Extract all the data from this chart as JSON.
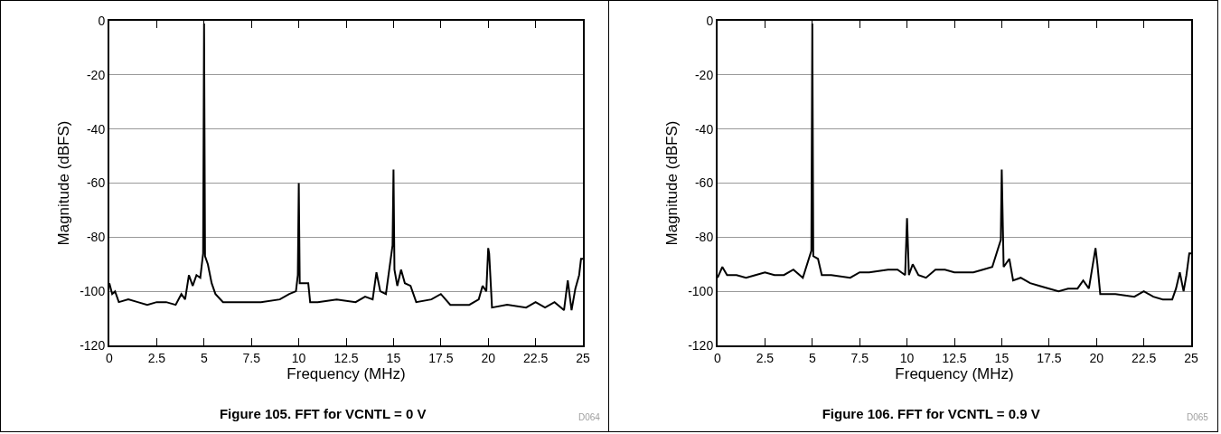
{
  "chart_data": [
    {
      "type": "line",
      "title": "Figure 105. FFT for VCNTL = 0 V",
      "xlabel": "Frequency (MHz)",
      "ylabel": "Magnitude (dBFS)",
      "annotations": [
        "D064"
      ],
      "grid": "y",
      "x": [
        0,
        0.15,
        0.3,
        0.5,
        1,
        1.5,
        2,
        2.5,
        3,
        3.5,
        3.8,
        4,
        4.2,
        4.4,
        4.6,
        4.8,
        4.95,
        5,
        5.05,
        5.2,
        5.4,
        5.6,
        6,
        7,
        8,
        9,
        9.5,
        9.85,
        9.95,
        10,
        10.05,
        10.2,
        10.5,
        10.6,
        11,
        12,
        13,
        13.5,
        13.9,
        14.1,
        14.3,
        14.6,
        14.95,
        15,
        15.05,
        15.2,
        15.4,
        15.6,
        15.9,
        16.2,
        17,
        17.5,
        18,
        19,
        19.5,
        19.7,
        19.9,
        20,
        20.05,
        20.2,
        21,
        22,
        22.5,
        23,
        23.5,
        24,
        24.2,
        24.4,
        24.6,
        24.8,
        24.9,
        25
      ],
      "series": [
        {
          "color": "#000000",
          "values": [
            -97,
            -101,
            -100,
            -104,
            -103,
            -104,
            -105,
            -104,
            -104,
            -105,
            -101,
            -103,
            -94,
            -98,
            -94,
            -95,
            -86,
            -1,
            -87,
            -90,
            -97,
            -101,
            -104,
            -104,
            -104,
            -103,
            -101,
            -100,
            -94,
            -60,
            -97,
            -97,
            -97,
            -104,
            -104,
            -103,
            -104,
            -102,
            -103,
            -93,
            -100,
            -101,
            -83,
            -55,
            -92,
            -98,
            -92,
            -97,
            -98,
            -104,
            -103,
            -101,
            -105,
            -105,
            -103,
            -98,
            -100,
            -84,
            -86,
            -106,
            -105,
            -106,
            -104,
            -106,
            -104,
            -107,
            -96,
            -107,
            -99,
            -94,
            -88,
            -88
          ]
        }
      ],
      "xlim": [
        0,
        25
      ],
      "xticks": [
        0,
        2.5,
        5,
        7.5,
        10,
        12.5,
        15,
        17.5,
        20,
        22.5,
        25
      ],
      "ylim": [
        -120,
        0
      ],
      "yticks": [
        -120,
        -100,
        -80,
        -60,
        -40,
        -20,
        0
      ]
    },
    {
      "type": "line",
      "title": "Figure 106. FFT for VCNTL = 0.9 V",
      "xlabel": "Frequency (MHz)",
      "ylabel": "Magnitude (dBFS)",
      "annotations": [
        "D065"
      ],
      "grid": "y",
      "x": [
        0,
        0.25,
        0.5,
        1,
        1.5,
        2,
        2.5,
        3,
        3.5,
        4,
        4.5,
        4.95,
        5,
        5.05,
        5.3,
        5.5,
        6,
        7,
        7.5,
        8,
        9,
        9.5,
        9.9,
        10,
        10.1,
        10.3,
        10.6,
        11,
        11.5,
        12,
        12.5,
        13,
        13.5,
        14,
        14.5,
        14.95,
        15,
        15.1,
        15.4,
        15.6,
        16,
        16.5,
        17,
        17.5,
        18,
        18.5,
        19,
        19.3,
        19.6,
        19.95,
        20.05,
        20.2,
        21,
        22,
        22.5,
        23,
        23.5,
        24,
        24.2,
        24.4,
        24.6,
        24.75,
        24.9,
        25
      ],
      "series": [
        {
          "color": "#000000",
          "values": [
            -95,
            -91,
            -94,
            -94,
            -95,
            -94,
            -93,
            -94,
            -94,
            -92,
            -95,
            -85,
            -1,
            -87,
            -88,
            -94,
            -94,
            -95,
            -93,
            -93,
            -92,
            -92,
            -94,
            -73,
            -94,
            -90,
            -94,
            -95,
            -92,
            -92,
            -93,
            -93,
            -93,
            -92,
            -91,
            -81,
            -55,
            -91,
            -88,
            -96,
            -95,
            -97,
            -98,
            -99,
            -100,
            -99,
            -99,
            -96,
            -99,
            -84,
            -90,
            -101,
            -101,
            -102,
            -100,
            -102,
            -103,
            -103,
            -99,
            -93,
            -100,
            -94,
            -86,
            -86
          ]
        }
      ],
      "xlim": [
        0,
        25
      ],
      "xticks": [
        0,
        2.5,
        5,
        7.5,
        10,
        12.5,
        15,
        17.5,
        20,
        22.5,
        25
      ],
      "ylim": [
        -120,
        0
      ],
      "yticks": [
        -120,
        -100,
        -80,
        -60,
        -40,
        -20,
        0
      ]
    }
  ]
}
